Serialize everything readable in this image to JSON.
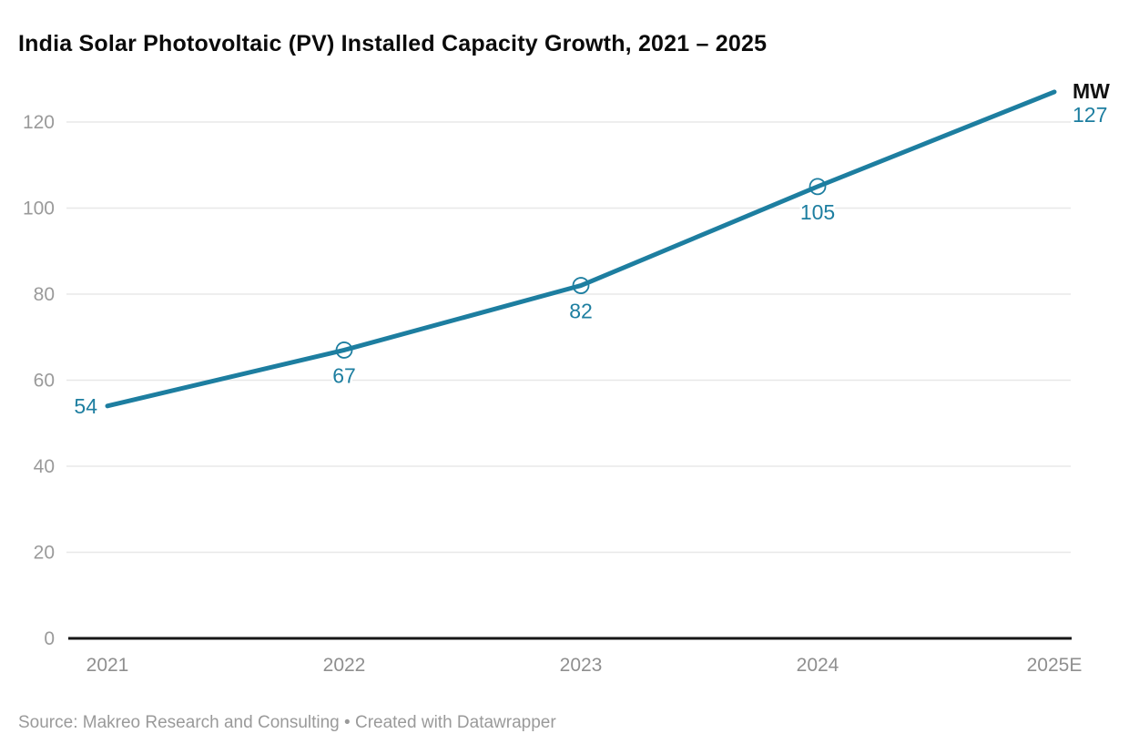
{
  "title": "India Solar Photovoltaic (PV) Installed Capacity Growth, 2021 – 2025",
  "footer": {
    "source": "Source: Makreo Research and Consulting",
    "separator": " • ",
    "credit": "Created with Datawrapper"
  },
  "chart_data": {
    "type": "line",
    "title": "India Solar Photovoltaic (PV) Installed Capacity Growth, 2021 – 2025",
    "categories": [
      "2021",
      "2022",
      "2023",
      "2024",
      "2025E"
    ],
    "values": [
      54,
      67,
      82,
      105,
      127
    ],
    "unit": "MW",
    "y_ticks": [
      0,
      20,
      40,
      60,
      80,
      100,
      120
    ],
    "ylim": [
      0,
      130
    ],
    "grid": true,
    "legend": "none",
    "marker_indices": [
      1,
      2,
      3
    ],
    "colors": {
      "line": "#1d7ea0",
      "value_labels": "#1d7ea0",
      "axis_text": "#9a9a9a",
      "grid": "#e8e8e8",
      "baseline": "#161616"
    }
  }
}
